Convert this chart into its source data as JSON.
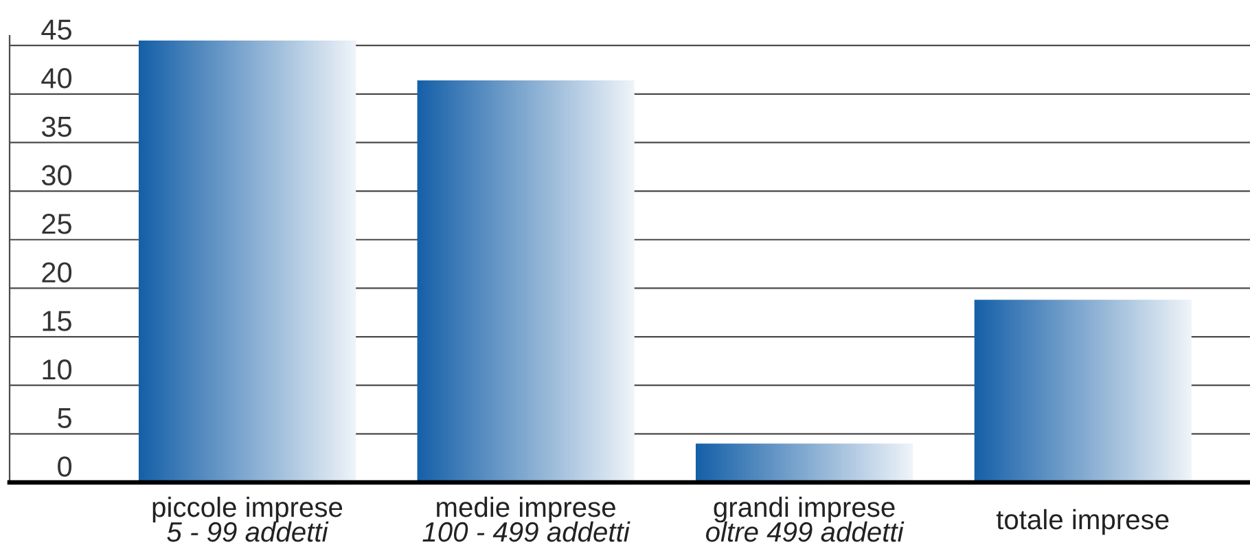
{
  "chart_data": {
    "type": "bar",
    "categories": [
      "piccole imprese\n5 - 99 addetti",
      "medie imprese\n100 - 499 addetti",
      "grandi imprese\noltre 499 addetti",
      "totale imprese"
    ],
    "values": [
      45.5,
      41.4,
      4.0,
      18.8
    ],
    "color": "#1660a9",
    "ylim": [
      0,
      46
    ],
    "yticks": [
      0,
      5,
      10,
      15,
      20,
      25,
      30,
      35,
      40,
      45
    ],
    "grid": "y"
  }
}
